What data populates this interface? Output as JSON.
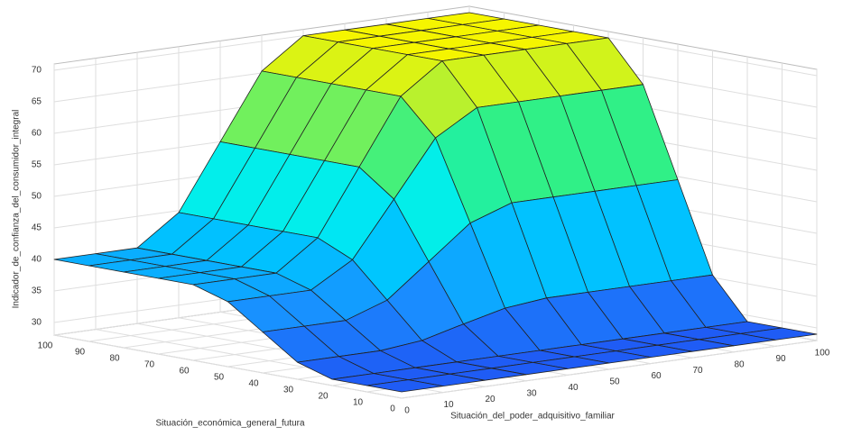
{
  "chart_data": {
    "type": "surface",
    "xlabel": "Situación_del_poder_adquisitivo_familiar",
    "ylabel": "Situación_económica_general_futura",
    "zlabel": "Indicador_de_confianza_del_consumidor_integral",
    "x": [
      0,
      10,
      20,
      30,
      40,
      50,
      60,
      70,
      80,
      90,
      100
    ],
    "y": [
      0,
      10,
      20,
      30,
      40,
      50,
      60,
      70,
      80,
      90,
      100
    ],
    "z": [
      [
        29,
        29,
        29,
        29,
        29,
        29,
        29,
        29,
        29,
        29,
        29
      ],
      [
        29,
        29,
        29,
        29,
        29,
        29,
        29,
        29,
        29,
        29,
        29
      ],
      [
        29,
        29,
        29,
        29,
        29,
        29,
        29,
        29,
        29,
        29,
        29
      ],
      [
        30.7,
        30.7,
        30.7,
        31.4,
        33.1,
        34.7,
        35.4,
        35.4,
        35.4,
        35.4,
        35.4
      ],
      [
        34.5,
        34.5,
        34.5,
        36.8,
        42,
        47.2,
        49.5,
        49.5,
        49.5,
        49.5,
        49.5
      ],
      [
        38.3,
        38.3,
        38.3,
        42.2,
        50.9,
        59.7,
        63.6,
        63.6,
        63.6,
        63.6,
        63.6
      ],
      [
        40,
        40,
        40,
        44.7,
        55,
        65.3,
        70,
        70,
        70,
        70,
        70
      ],
      [
        40,
        40,
        40,
        44.7,
        55,
        65.3,
        70,
        70,
        70,
        70,
        70
      ],
      [
        40,
        40,
        40,
        44.7,
        55,
        65.3,
        70,
        70,
        70,
        70,
        70
      ],
      [
        40,
        40,
        40,
        44.7,
        55,
        65.3,
        70,
        70,
        70,
        70,
        70
      ],
      [
        40,
        40,
        40,
        44.7,
        55,
        65.3,
        70,
        70,
        70,
        70,
        70
      ]
    ],
    "xlim": [
      0,
      100
    ],
    "ylim": [
      0,
      100
    ],
    "zlim": [
      28,
      71
    ],
    "xticks": [
      0,
      10,
      20,
      30,
      40,
      50,
      60,
      70,
      80,
      90,
      100
    ],
    "yticks": [
      0,
      10,
      20,
      30,
      40,
      50,
      60,
      70,
      80,
      90,
      100
    ],
    "zticks": [
      30,
      35,
      40,
      45,
      50,
      55,
      60,
      65,
      70
    ],
    "grid": true,
    "colormap": [
      "#1f5cf5",
      "#1a8cff",
      "#00c4ff",
      "#00eef0",
      "#2cf08a",
      "#a8f03a",
      "#f5f500"
    ]
  }
}
